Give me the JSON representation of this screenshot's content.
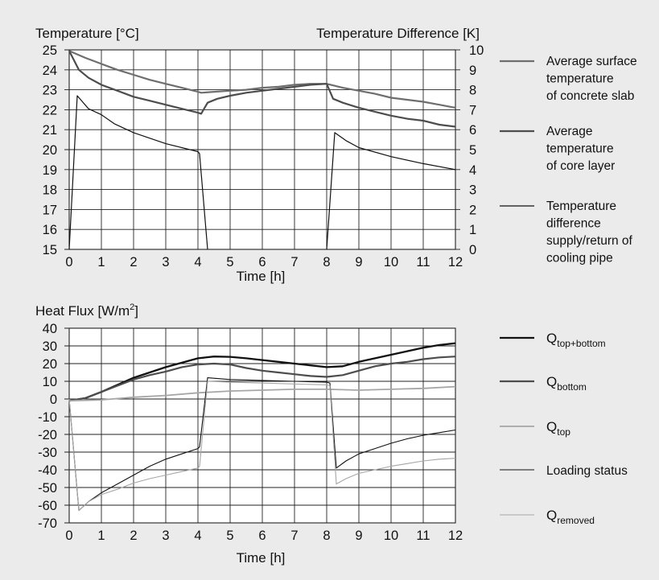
{
  "colors": {
    "background": "#ebebeb",
    "plot_area": "#ffffff",
    "grid": "#222222",
    "black_series": "#111111",
    "dark_gray_series": "#4d4d4d",
    "mid_gray_series": "#6e6e6e",
    "light_gray_series": "#a6a6a6"
  },
  "chart_data": [
    {
      "type": "line",
      "xlabel": "Time [h]",
      "ylabel": "Temperature [°C]",
      "y2label": "Temperature Difference [K]",
      "xlim": [
        0,
        12
      ],
      "ylim": [
        15,
        25
      ],
      "y2lim": [
        0,
        10
      ],
      "x_ticks": [
        "0",
        "1",
        "2",
        "3",
        "4",
        "5",
        "6",
        "7",
        "8",
        "9",
        "10",
        "11",
        "12"
      ],
      "y_ticks": [
        "15",
        "16",
        "17",
        "18",
        "19",
        "20",
        "21",
        "22",
        "23",
        "24",
        "25"
      ],
      "y2_ticks": [
        "0",
        "1",
        "2",
        "3",
        "4",
        "5",
        "6",
        "7",
        "8",
        "9",
        "10"
      ],
      "grid": true,
      "legend_position": "right",
      "series": [
        {
          "name": "Average surface temperature of concrete slab",
          "legend_lines": [
            "Average surface",
            "temperature",
            "of concrete slab"
          ],
          "color": "#6e6e6e",
          "width": 2.2,
          "axis": "left",
          "points": [
            [
              0,
              24.95
            ],
            [
              0.5,
              24.6
            ],
            [
              1,
              24.3
            ],
            [
              1.5,
              24.0
            ],
            [
              2,
              23.75
            ],
            [
              2.5,
              23.5
            ],
            [
              3,
              23.3
            ],
            [
              3.5,
              23.1
            ],
            [
              4,
              22.9
            ],
            [
              4.1,
              22.85
            ],
            [
              4.5,
              22.9
            ],
            [
              5,
              22.95
            ],
            [
              5.5,
              23.0
            ],
            [
              6,
              23.1
            ],
            [
              6.5,
              23.15
            ],
            [
              7,
              23.25
            ],
            [
              7.5,
              23.3
            ],
            [
              8,
              23.3
            ],
            [
              8.5,
              23.1
            ],
            [
              9,
              22.95
            ],
            [
              9.5,
              22.8
            ],
            [
              10,
              22.6
            ],
            [
              10.5,
              22.5
            ],
            [
              11,
              22.4
            ],
            [
              11.5,
              22.25
            ],
            [
              12,
              22.1
            ]
          ]
        },
        {
          "name": "Average temperature of core layer",
          "legend_lines": [
            "Average",
            "temperature",
            "of core layer"
          ],
          "color": "#4d4d4d",
          "width": 2.2,
          "axis": "left",
          "points": [
            [
              0,
              24.95
            ],
            [
              0.3,
              24.0
            ],
            [
              0.6,
              23.6
            ],
            [
              1,
              23.25
            ],
            [
              1.5,
              22.95
            ],
            [
              2,
              22.65
            ],
            [
              2.5,
              22.45
            ],
            [
              3,
              22.25
            ],
            [
              3.5,
              22.05
            ],
            [
              4,
              21.85
            ],
            [
              4.1,
              21.8
            ],
            [
              4.3,
              22.35
            ],
            [
              4.6,
              22.55
            ],
            [
              5,
              22.7
            ],
            [
              5.5,
              22.85
            ],
            [
              6,
              22.95
            ],
            [
              6.5,
              23.05
            ],
            [
              7,
              23.15
            ],
            [
              7.5,
              23.25
            ],
            [
              8,
              23.3
            ],
            [
              8.2,
              22.55
            ],
            [
              8.5,
              22.35
            ],
            [
              9,
              22.1
            ],
            [
              9.5,
              21.9
            ],
            [
              10,
              21.7
            ],
            [
              10.5,
              21.55
            ],
            [
              11,
              21.45
            ],
            [
              11.5,
              21.25
            ],
            [
              12,
              21.15
            ]
          ]
        },
        {
          "name": "Temperature difference supply/return of cooling pipe",
          "legend_lines": [
            "Temperature",
            "difference",
            "supply/return of",
            "cooling pipe"
          ],
          "color": "#111111",
          "width": 1.2,
          "axis": "right",
          "points": [
            [
              0,
              0
            ],
            [
              0.25,
              7.7
            ],
            [
              0.6,
              7.05
            ],
            [
              1,
              6.75
            ],
            [
              1.4,
              6.3
            ],
            [
              2,
              5.85
            ],
            [
              3,
              5.3
            ],
            [
              4,
              4.9
            ],
            [
              4.05,
              4.8
            ],
            [
              4.3,
              0
            ],
            [
              null,
              null
            ],
            [
              8,
              0
            ],
            [
              8.25,
              5.85
            ],
            [
              8.6,
              5.45
            ],
            [
              9,
              5.1
            ],
            [
              10,
              4.65
            ],
            [
              11,
              4.3
            ],
            [
              12,
              4.0
            ]
          ]
        }
      ]
    },
    {
      "type": "line",
      "xlabel": "Time [h]",
      "ylabel_main": "Heat Flux [W/m",
      "ylabel_sup": "2",
      "ylabel_tail": "]",
      "xlim": [
        0,
        12
      ],
      "ylim": [
        -70,
        40
      ],
      "x_ticks": [
        "0",
        "1",
        "2",
        "3",
        "4",
        "5",
        "6",
        "7",
        "8",
        "9",
        "10",
        "11",
        "12"
      ],
      "y_ticks": [
        "-70",
        "-60",
        "-50",
        "-40",
        "-30",
        "-20",
        "-10",
        "0",
        "10",
        "20",
        "30",
        "40"
      ],
      "grid": true,
      "legend_position": "right",
      "series": [
        {
          "name": "Qtop+bottom",
          "legend_main": "Q",
          "legend_sub": "top+bottom",
          "color": "#111111",
          "width": 2.3,
          "points": [
            [
              0,
              -1
            ],
            [
              0.5,
              0.5
            ],
            [
              1,
              4
            ],
            [
              1.5,
              8
            ],
            [
              2,
              12
            ],
            [
              2.5,
              15
            ],
            [
              3,
              18
            ],
            [
              3.5,
              20.5
            ],
            [
              4,
              23
            ],
            [
              4.5,
              24
            ],
            [
              5,
              23.8
            ],
            [
              5.5,
              23
            ],
            [
              6,
              22
            ],
            [
              6.5,
              21
            ],
            [
              7,
              20
            ],
            [
              7.5,
              19
            ],
            [
              8,
              18
            ],
            [
              8.5,
              18.5
            ],
            [
              9,
              21
            ],
            [
              9.5,
              23
            ],
            [
              10,
              25
            ],
            [
              10.5,
              27
            ],
            [
              11,
              29
            ],
            [
              11.5,
              30.5
            ],
            [
              12,
              31.5
            ]
          ]
        },
        {
          "name": "Qbottom",
          "legend_main": "Q",
          "legend_sub": "bottom",
          "color": "#4d4d4d",
          "width": 2.2,
          "points": [
            [
              0,
              -1
            ],
            [
              0.5,
              0.5
            ],
            [
              1,
              4
            ],
            [
              1.5,
              7.5
            ],
            [
              2,
              11
            ],
            [
              2.5,
              13.5
            ],
            [
              3,
              15.5
            ],
            [
              3.5,
              18
            ],
            [
              4,
              19.5
            ],
            [
              4.5,
              20
            ],
            [
              5,
              19.5
            ],
            [
              5.5,
              17.5
            ],
            [
              6,
              16
            ],
            [
              6.5,
              15
            ],
            [
              7,
              14
            ],
            [
              7.5,
              13
            ],
            [
              8,
              12.5
            ],
            [
              8.5,
              13.5
            ],
            [
              9,
              16
            ],
            [
              9.5,
              18.5
            ],
            [
              10,
              20
            ],
            [
              10.5,
              21
            ],
            [
              11,
              22.5
            ],
            [
              11.5,
              23.5
            ],
            [
              12,
              24
            ]
          ]
        },
        {
          "name": "Qtop",
          "legend_main": "Q",
          "legend_sub": "top",
          "color": "#a6a6a6",
          "width": 1.8,
          "points": [
            [
              0,
              -1
            ],
            [
              1,
              -0.5
            ],
            [
              2,
              1
            ],
            [
              3,
              2
            ],
            [
              4,
              3.5
            ],
            [
              5,
              4.5
            ],
            [
              6,
              5
            ],
            [
              7,
              5.5
            ],
            [
              8,
              5.5
            ],
            [
              9,
              5
            ],
            [
              10,
              5.5
            ],
            [
              11,
              6
            ],
            [
              12,
              7
            ]
          ]
        },
        {
          "name": "Loading status",
          "legend_text": "Loading status",
          "color": "#111111",
          "width": 1.1,
          "points": [
            [
              0,
              0
            ],
            [
              0.3,
              -63
            ],
            [
              0.6,
              -58
            ],
            [
              1,
              -53
            ],
            [
              1.5,
              -48
            ],
            [
              2,
              -43
            ],
            [
              2.5,
              -38
            ],
            [
              3,
              -34
            ],
            [
              3.5,
              -31
            ],
            [
              4,
              -28
            ],
            [
              4.05,
              -27
            ],
            [
              4.3,
              12
            ],
            [
              5,
              11
            ],
            [
              6,
              10.5
            ],
            [
              7,
              10
            ],
            [
              8,
              9.5
            ],
            [
              8.1,
              9
            ],
            [
              8.3,
              -39
            ],
            [
              8.6,
              -35
            ],
            [
              9,
              -31
            ],
            [
              9.5,
              -28
            ],
            [
              10,
              -25
            ],
            [
              10.5,
              -22.5
            ],
            [
              11,
              -20.5
            ],
            [
              11.5,
              -19
            ],
            [
              12,
              -17.5
            ]
          ]
        },
        {
          "name": "Qremoved",
          "legend_main": "Q",
          "legend_sub": "removed",
          "color": "#a6a6a6",
          "width": 1.1,
          "points": [
            [
              0,
              0
            ],
            [
              0.3,
              -63
            ],
            [
              0.6,
              -58
            ],
            [
              1,
              -54
            ],
            [
              1.5,
              -51
            ],
            [
              2,
              -47.5
            ],
            [
              2.5,
              -45
            ],
            [
              3,
              -43
            ],
            [
              3.5,
              -41
            ],
            [
              4,
              -39
            ],
            [
              4.05,
              -38
            ],
            [
              4.3,
              10
            ],
            [
              5,
              9.5
            ],
            [
              6,
              9
            ],
            [
              7,
              8.5
            ],
            [
              8,
              8
            ],
            [
              8.1,
              7.5
            ],
            [
              8.3,
              -48
            ],
            [
              8.6,
              -45
            ],
            [
              9,
              -42
            ],
            [
              9.5,
              -40
            ],
            [
              10,
              -38
            ],
            [
              10.5,
              -36.5
            ],
            [
              11,
              -35
            ],
            [
              11.5,
              -34
            ],
            [
              12,
              -33.5
            ]
          ]
        }
      ]
    }
  ]
}
